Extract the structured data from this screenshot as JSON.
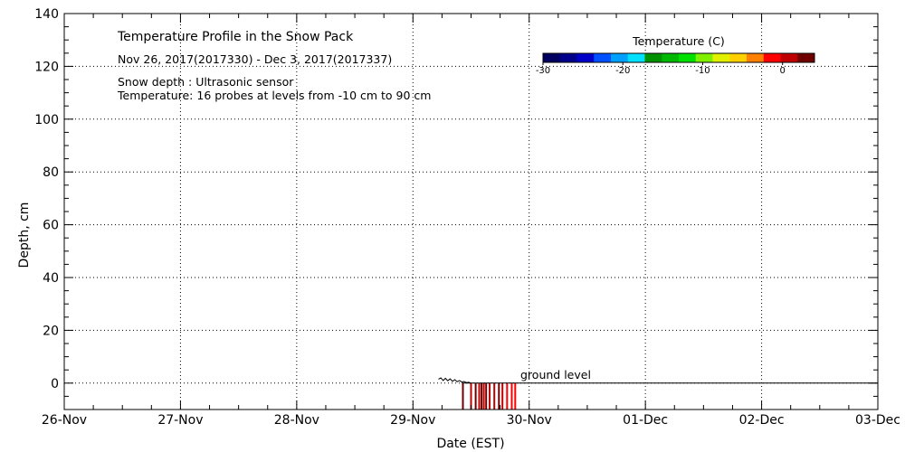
{
  "chart_data": {
    "type": "heatmap",
    "title": "Temperature Profile in the Snow Pack",
    "date_range": "Nov 26, 2017(2017330) - Dec  3, 2017(2017337)",
    "note_depth": "Snow depth : Ultrasonic sensor",
    "note_temp": "Temperature: 16 probes at levels from -10 cm to 90 cm",
    "xlabel": "Date (EST)",
    "ylabel": "Depth, cm",
    "x_ticks": [
      "26-Nov",
      "27-Nov",
      "28-Nov",
      "29-Nov",
      "30-Nov",
      "01-Dec",
      "02-Dec",
      "03-Dec"
    ],
    "y_ticks": [
      0,
      20,
      40,
      60,
      80,
      100,
      120,
      140
    ],
    "ylim": [
      -10,
      140
    ],
    "grid": true,
    "annotation": "ground level",
    "ground_level": 0,
    "colorbar": {
      "label": "Temperature (C)",
      "tick_labels": [
        "-30",
        "-20",
        "-10",
        "0"
      ],
      "tick_values": [
        -30,
        -20,
        -10,
        0
      ],
      "range": [
        -30,
        4
      ],
      "colors": [
        "#000060",
        "#00008a",
        "#0000c8",
        "#0050ff",
        "#00a0ff",
        "#00e0ff",
        "#009000",
        "#00b800",
        "#00e000",
        "#80f000",
        "#e0f000",
        "#ffd000",
        "#ff8000",
        "#ff0000",
        "#c00000",
        "#700000"
      ]
    },
    "snow_depth_trace": {
      "x_days": [
        3.22,
        3.24,
        3.26,
        3.28,
        3.3,
        3.32,
        3.34,
        3.36,
        3.38,
        3.4,
        3.42,
        3.44,
        3.46,
        3.48,
        3.5
      ],
      "y": [
        1.5,
        2.0,
        1.0,
        1.8,
        0.9,
        1.6,
        0.7,
        1.3,
        0.5,
        1.0,
        0.4,
        0.6,
        0.2,
        0.3,
        0.0
      ]
    },
    "subsurface_temperatures": [
      {
        "x_days": 3.43,
        "temperature": 2
      },
      {
        "x_days": 3.5,
        "temperature": 1
      },
      {
        "x_days": 3.54,
        "temperature": 2
      },
      {
        "x_days": 3.57,
        "temperature": 1
      },
      {
        "x_days": 3.59,
        "temperature": 2
      },
      {
        "x_days": 3.61,
        "temperature": 1
      },
      {
        "x_days": 3.63,
        "temperature": 2
      },
      {
        "x_days": 3.66,
        "temperature": 0
      },
      {
        "x_days": 3.7,
        "temperature": 1
      },
      {
        "x_days": 3.74,
        "temperature": 2
      },
      {
        "x_days": 3.77,
        "temperature": 0
      },
      {
        "x_days": 3.81,
        "temperature": -1
      },
      {
        "x_days": 3.85,
        "temperature": -1
      },
      {
        "x_days": 3.88,
        "temperature": -2
      }
    ]
  }
}
